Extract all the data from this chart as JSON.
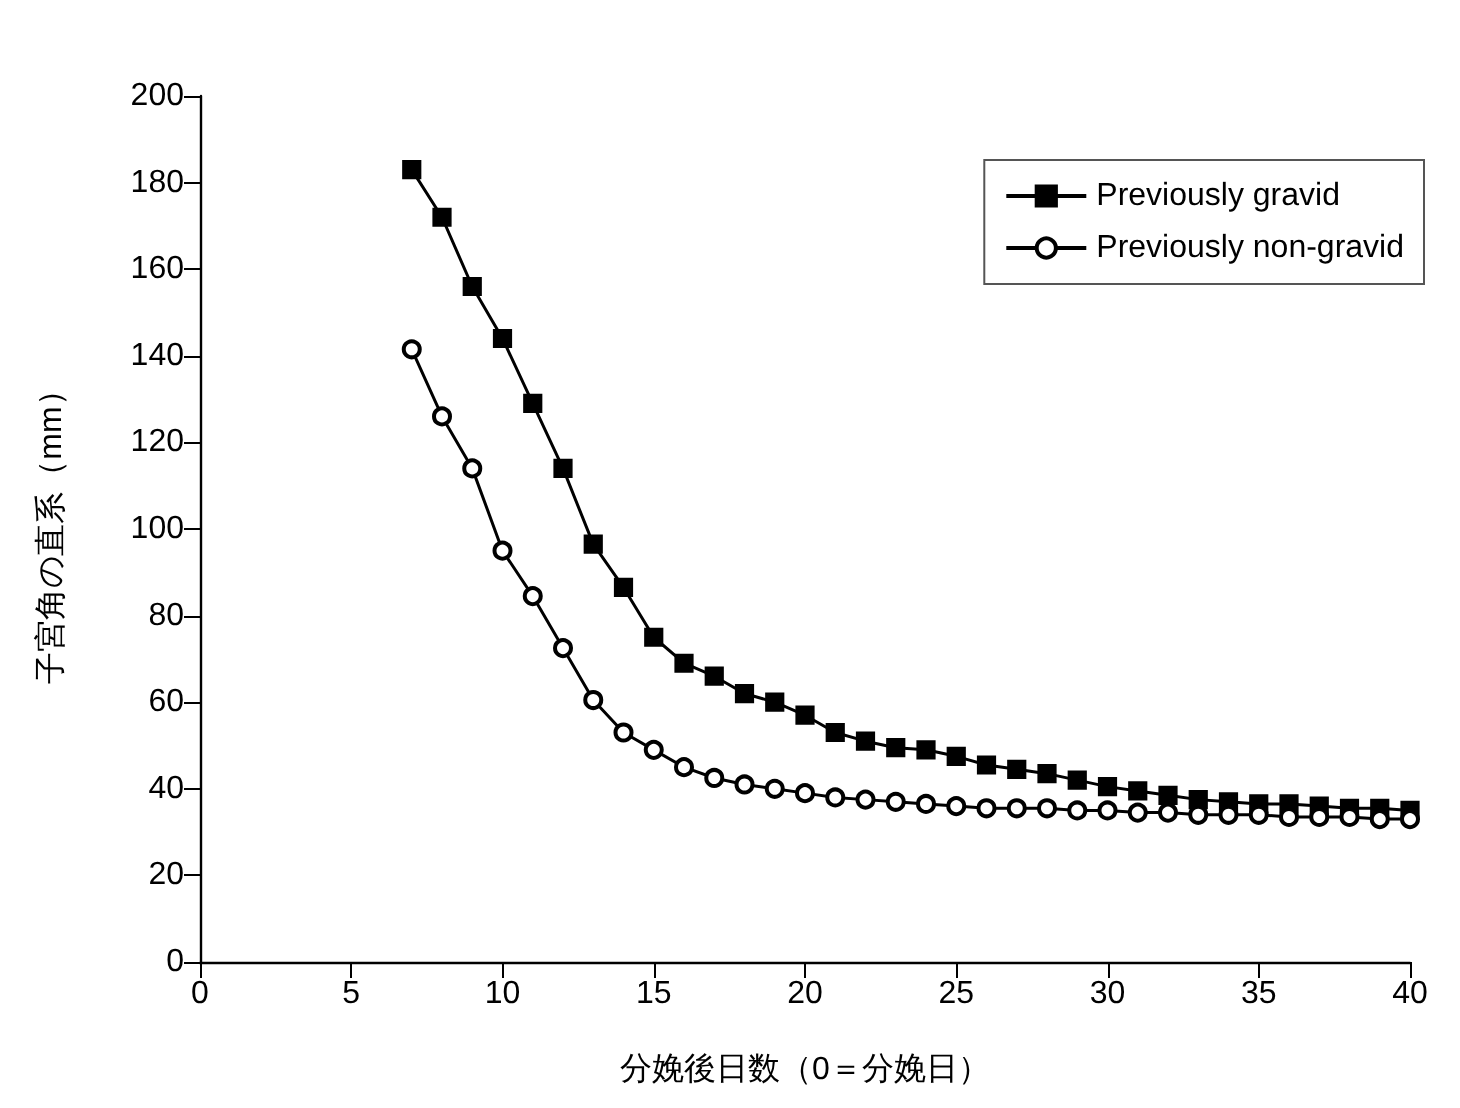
{
  "chart_data": {
    "type": "line",
    "xlabel": "分娩後日数（0＝分娩日）",
    "ylabel": "子宮角の直系（mm）",
    "x": [
      7,
      8,
      9,
      10,
      11,
      12,
      13,
      14,
      15,
      16,
      17,
      18,
      19,
      20,
      21,
      22,
      23,
      24,
      25,
      26,
      27,
      28,
      29,
      30,
      31,
      32,
      33,
      34,
      35,
      36,
      37,
      38,
      39,
      40
    ],
    "series": [
      {
        "name": "Previously gravid",
        "color": "#000000",
        "marker": "square",
        "values": [
          183,
          172,
          156,
          144,
          129,
          114,
          96.5,
          86.5,
          75,
          69,
          66,
          62,
          60,
          57,
          53,
          51,
          49.5,
          49,
          47.5,
          45.5,
          44.5,
          43.5,
          42,
          40.5,
          39.5,
          38.5,
          37.5,
          37,
          36.5,
          36.5,
          36,
          35.5,
          35.5,
          35
        ]
      },
      {
        "name": "Previously non-gravid",
        "color": "#000000",
        "marker": "circle",
        "values": [
          141.5,
          126,
          114,
          95,
          84.5,
          72.5,
          60.5,
          53,
          49,
          45,
          42.5,
          41,
          40,
          39,
          38,
          37.5,
          37,
          36.5,
          36,
          35.5,
          35.5,
          35.5,
          35,
          35,
          34.5,
          34.5,
          34,
          34,
          34,
          33.5,
          33.5,
          33.5,
          33,
          33
        ]
      }
    ],
    "xlim": [
      0,
      40
    ],
    "xticks": [
      0,
      5,
      10,
      15,
      20,
      25,
      30,
      35,
      40
    ],
    "ylim": [
      0,
      200
    ],
    "yticks": [
      0,
      20,
      40,
      60,
      80,
      100,
      120,
      140,
      160,
      180,
      200
    ],
    "grid": false,
    "legend": "top right"
  }
}
